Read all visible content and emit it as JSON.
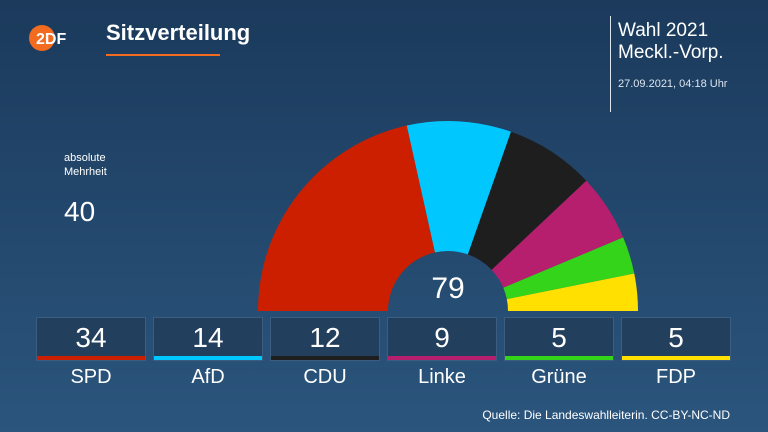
{
  "brand": {
    "logo_text": "2DF",
    "color": "#f26b1f"
  },
  "header": {
    "title": "Sitzverteilung",
    "election_line1": "Wahl 2021",
    "election_line2": "Meckl.-Vorp.",
    "timestamp": "27.09.2021, 04:18 Uhr"
  },
  "majority": {
    "label_line1": "absolute",
    "label_line2": "Mehrheit",
    "value": "40"
  },
  "source": "Quelle: Die Landeswahlleiterin. CC-BY-NC-ND",
  "chart_data": {
    "type": "pie",
    "subtype": "half-donut (parliament seats)",
    "title": "Sitzverteilung",
    "total": 79,
    "categories": [
      "SPD",
      "AfD",
      "CDU",
      "Linke",
      "Grüne",
      "FDP"
    ],
    "values": [
      34,
      14,
      12,
      9,
      5,
      5
    ],
    "colors": [
      "#cc1f00",
      "#00c8ff",
      "#1e1e1e",
      "#b61f6e",
      "#33d41a",
      "#ffe000"
    ]
  }
}
